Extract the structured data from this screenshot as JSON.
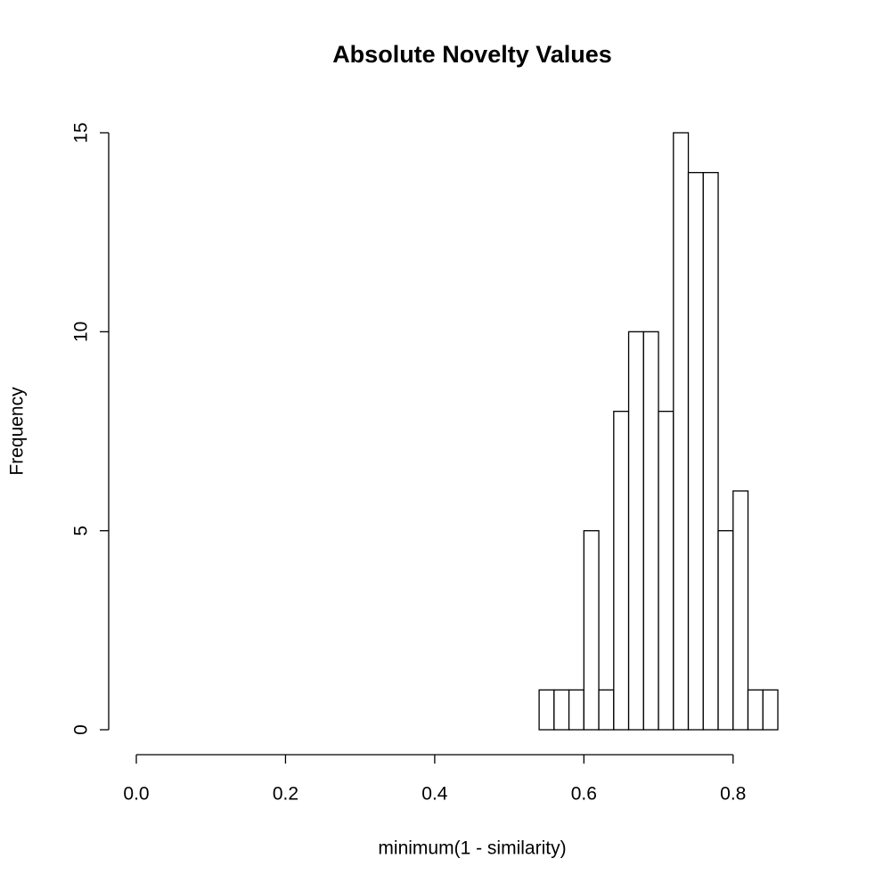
{
  "chart_data": {
    "type": "histogram",
    "title": "Absolute Novelty Values",
    "x_label": "minimum(1 - similarity)",
    "y_label": "Frequency",
    "bins": [
      0.54,
      0.56,
      0.58,
      0.6,
      0.62,
      0.64,
      0.66,
      0.68,
      0.7,
      0.72,
      0.74,
      0.76,
      0.78,
      0.8,
      0.82,
      0.84,
      0.86
    ],
    "values": [
      1,
      1,
      1,
      5,
      1,
      8,
      10,
      10,
      8,
      15,
      14,
      14,
      5,
      6,
      1,
      1
    ],
    "color": "#ffffff",
    "xlim": [
      0,
      0.86
    ],
    "xticks": [
      {
        "value": 0,
        "label": "0.0"
      },
      0.2,
      0.4,
      0.6,
      0.8
    ],
    "ylim": [
      0,
      15
    ],
    "yticks": [
      0,
      5,
      10,
      15
    ]
  }
}
